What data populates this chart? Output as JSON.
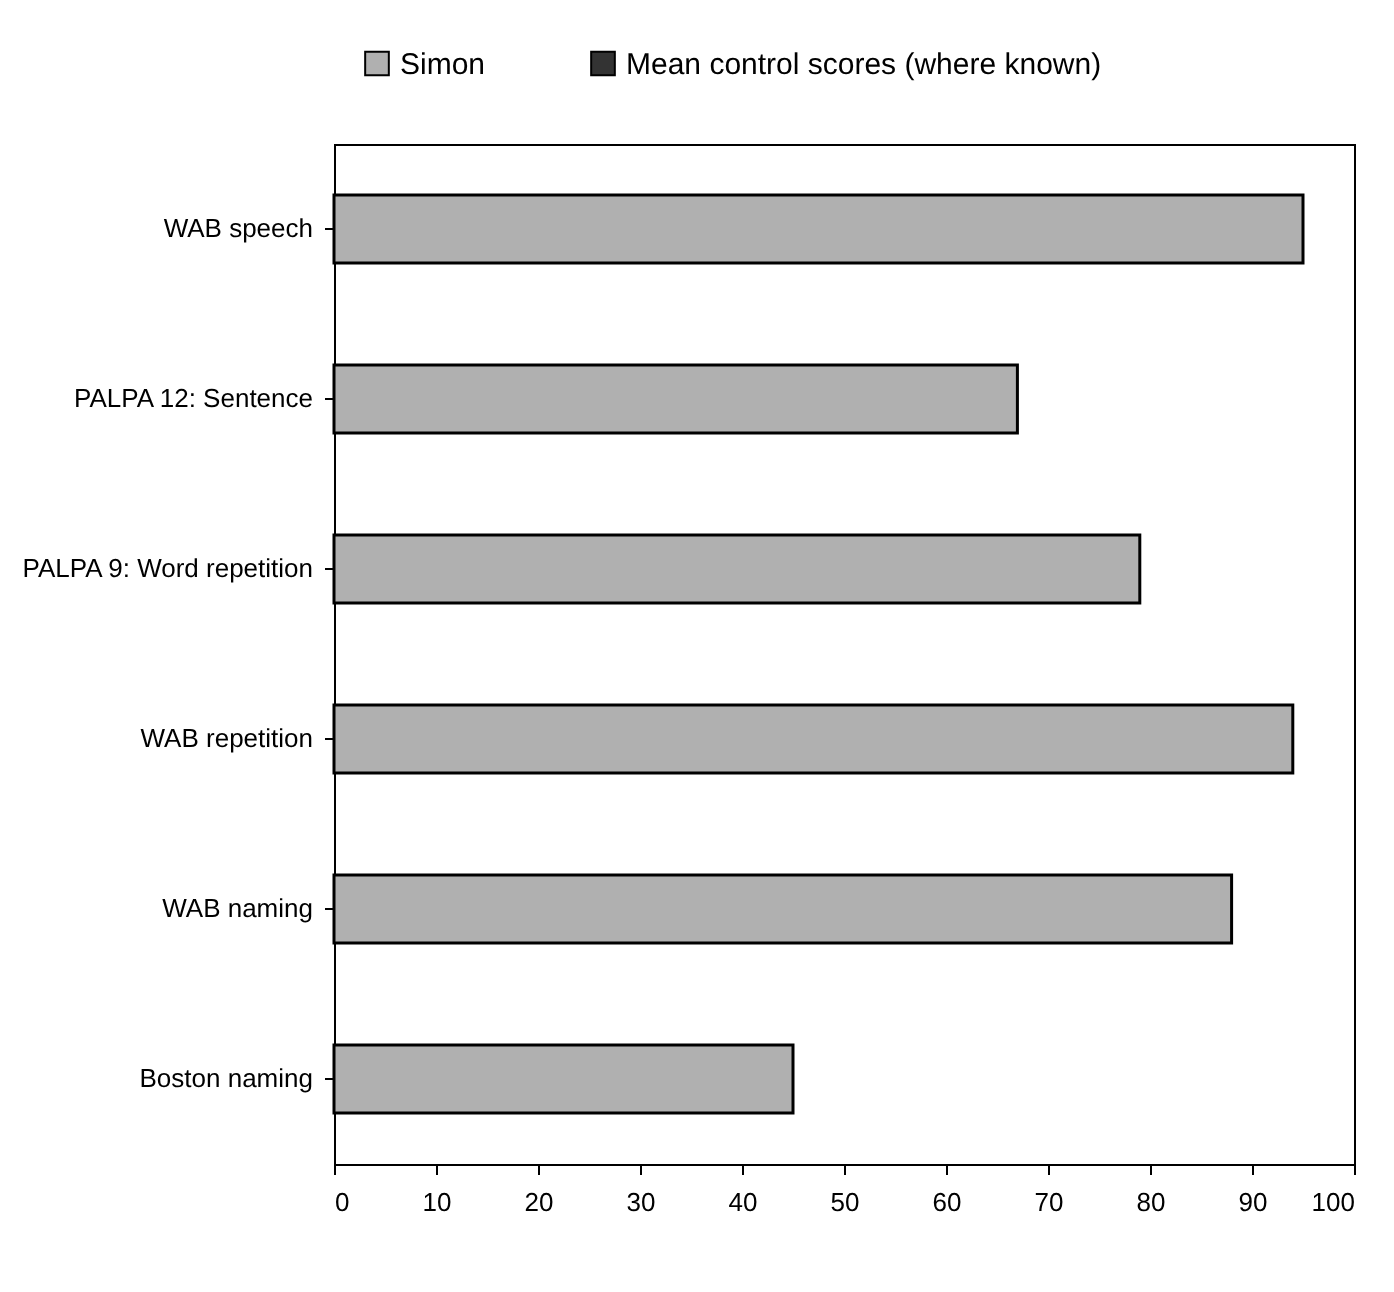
{
  "chart_data": {
    "type": "bar",
    "orientation": "horizontal",
    "categories": [
      "WAB speech",
      "PALPA 12: Sentence",
      "PALPA 9: Word repetition",
      "WAB repetition",
      "WAB naming",
      "Boston naming"
    ],
    "series": [
      {
        "name": "Simon",
        "color": "#b0b0b0",
        "values": [
          95,
          67,
          79,
          94,
          88,
          45
        ]
      },
      {
        "name": "Mean control scores (where known)",
        "color": "#333333",
        "values": [
          null,
          null,
          null,
          null,
          null,
          null
        ]
      }
    ],
    "xlim": [
      0,
      100
    ],
    "xticks": [
      0,
      10,
      20,
      30,
      40,
      50,
      60,
      70,
      80,
      90,
      100
    ],
    "grid": false,
    "legend": "top"
  }
}
